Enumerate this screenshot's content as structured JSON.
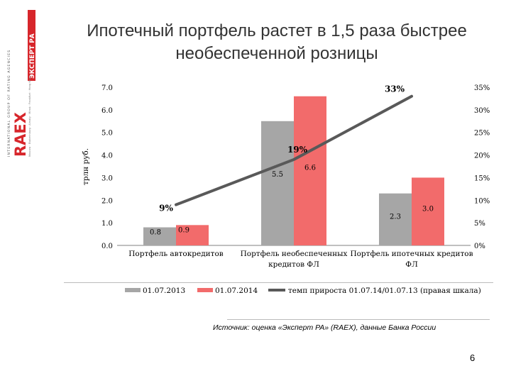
{
  "header": {
    "title_line1": "Ипотечный портфель растет в 1,5 раза быстрее",
    "title_line2": "необеспеченной розницы"
  },
  "logo": {
    "vertical_text": "INTERNATIONAL GROUP OF RATING AGENCIES",
    "brand": "RAEX",
    "brand_ru": "ЭКСПЕРТ РА",
    "tagline": "РЕЙТИНГОВОЕ АГЕНТСТВО",
    "cities": "Moscow · Ekaterinburg · Almaty · Minsk · Frankfurt · Hong Kong",
    "accent_color": "#d7262b"
  },
  "chart_data": {
    "type": "bar",
    "categories": [
      "Портфель автокредитов",
      "Портфель необеспеченных кредитов ФЛ",
      "Портфель ипотечных кредитов ФЛ"
    ],
    "category_lines": [
      [
        "Портфель автокредитов"
      ],
      [
        "Портфель необеспеченных",
        "кредитов ФЛ"
      ],
      [
        "Портфель ипотечных кредитов",
        "ФЛ"
      ]
    ],
    "series": [
      {
        "name": "01.07.2013",
        "values": [
          0.8,
          5.5,
          2.3
        ],
        "labels": [
          "0.8",
          "5.5",
          "2.3"
        ],
        "color": "#a6a6a6"
      },
      {
        "name": "01.07.2014",
        "values": [
          0.9,
          6.6,
          3.0
        ],
        "labels": [
          "0.9",
          "6.6",
          "3.0"
        ],
        "color": "#f26b6b"
      }
    ],
    "line_series": {
      "name": "темп прироста 01.07.14/01.07.13 (правая шкала)",
      "values": [
        9,
        19,
        33
      ],
      "labels": [
        "9%",
        "19%",
        "33%"
      ],
      "color": "#595959",
      "axis": "right"
    },
    "ylabel": "трлн руб.",
    "ylim": [
      0,
      7
    ],
    "y_ticks": [
      "0.0",
      "1.0",
      "2.0",
      "3.0",
      "4.0",
      "5.0",
      "6.0",
      "7.0"
    ],
    "y2lim": [
      0,
      35
    ],
    "y2_ticks": [
      "0%",
      "5%",
      "10%",
      "15%",
      "20%",
      "25%",
      "30%",
      "35%"
    ],
    "grid": false,
    "legend": "bottom"
  },
  "footer": {
    "source": "Источник: оценка «Эксперт РА» (RAEX), данные Банка России",
    "page_number": "6"
  }
}
